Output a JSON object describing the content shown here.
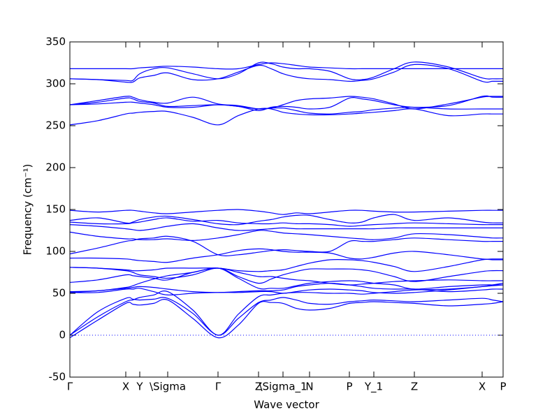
{
  "chart_data": {
    "type": "line",
    "xlabel": "Wave vector",
    "ylabel": "Frequency (cm⁻¹)",
    "x": [
      0,
      0.4,
      0.8,
      0.9,
      1.0,
      1.2,
      1.4,
      1.76,
      2.12,
      2.41,
      2.7,
      2.88,
      3.05,
      3.24,
      3.43,
      3.72,
      4.0,
      4.18,
      4.35,
      4.64,
      4.93,
      5.42,
      5.9,
      6.05,
      6.2
    ],
    "xlim": [
      0,
      6.2
    ],
    "xticks": [
      {
        "value": 0,
        "label": "Γ"
      },
      {
        "value": 0.8,
        "label": "X"
      },
      {
        "value": 1.0,
        "label": "Y"
      },
      {
        "value": 1.4,
        "label": "\\Sigma"
      },
      {
        "value": 2.12,
        "label": "Γ"
      },
      {
        "value": 2.7,
        "label": "Z"
      },
      {
        "value": 3.05,
        "label": "\\Sigma_1"
      },
      {
        "value": 3.43,
        "label": "N"
      },
      {
        "value": 4.0,
        "label": "P"
      },
      {
        "value": 4.35,
        "label": "Y_1"
      },
      {
        "value": 4.93,
        "label": "Z"
      },
      {
        "value": 5.9,
        "label": "X"
      },
      {
        "value": 6.2,
        "label": "P"
      }
    ],
    "ylim": [
      -50,
      350
    ],
    "yticks": [
      -50,
      0,
      50,
      100,
      150,
      200,
      250,
      300,
      350
    ],
    "color": "#0000ff",
    "zero_line": true,
    "series": [
      {
        "values": [
          318,
          318,
          318,
          318,
          319,
          320,
          321,
          320,
          318,
          318,
          323,
          325,
          324,
          322,
          320,
          319,
          318,
          318,
          318,
          318,
          318,
          318,
          318,
          318,
          318
        ]
      },
      {
        "values": [
          306,
          305,
          304,
          304,
          312,
          318,
          319,
          312,
          306,
          312,
          325,
          324,
          320,
          318,
          318,
          315,
          306,
          305,
          308,
          318,
          326,
          320,
          307,
          306,
          306
        ]
      },
      {
        "values": [
          306,
          305,
          302,
          302,
          307,
          310,
          313,
          305,
          306,
          314,
          322,
          318,
          312,
          308,
          306,
          305,
          303,
          304,
          306,
          314,
          323,
          318,
          303,
          303,
          303
        ]
      },
      {
        "values": [
          275,
          280,
          285,
          284,
          281,
          278,
          277,
          284,
          276,
          274,
          270,
          271,
          275,
          280,
          282,
          283,
          285,
          284,
          282,
          276,
          270,
          276,
          284,
          285,
          285
        ]
      },
      {
        "values": [
          275,
          278,
          283,
          282,
          279,
          277,
          273,
          274,
          275,
          273,
          268,
          272,
          273,
          272,
          270,
          272,
          283,
          282,
          280,
          275,
          272,
          274,
          285,
          284,
          284
        ]
      },
      {
        "values": [
          275,
          276,
          278,
          278,
          277,
          275,
          272,
          272,
          275,
          273,
          270,
          271,
          271,
          268,
          265,
          264,
          266,
          267,
          269,
          271,
          272,
          270,
          270,
          270,
          270
        ]
      },
      {
        "values": [
          251,
          256,
          264,
          265,
          266,
          267,
          267,
          260,
          251,
          262,
          270,
          270,
          266,
          264,
          263,
          263,
          264,
          265,
          266,
          268,
          270,
          262,
          264,
          264,
          264
        ]
      },
      {
        "values": [
          149,
          147,
          149,
          149,
          148,
          146,
          145,
          147,
          149,
          150,
          148,
          146,
          144,
          146,
          145,
          147,
          149,
          149,
          148,
          147,
          147,
          148,
          149,
          149,
          149
        ]
      },
      {
        "values": [
          137,
          140,
          134,
          135,
          138,
          141,
          142,
          138,
          133,
          132,
          136,
          138,
          141,
          143,
          143,
          138,
          134,
          135,
          140,
          144,
          137,
          140,
          135,
          134,
          134
        ]
      },
      {
        "values": [
          135,
          133,
          133,
          134,
          135,
          138,
          140,
          136,
          137,
          134,
          133,
          133,
          134,
          133,
          133,
          132,
          130,
          131,
          132,
          133,
          134,
          133,
          132,
          132,
          132
        ]
      },
      {
        "values": [
          132,
          130,
          127,
          126,
          125,
          127,
          130,
          133,
          128,
          125,
          126,
          127,
          128,
          127,
          127,
          127,
          127,
          127,
          127,
          128,
          128,
          128,
          128,
          128,
          128
        ]
      },
      {
        "values": [
          123,
          118,
          115,
          115,
          114,
          114,
          115,
          113,
          116,
          120,
          125,
          124,
          122,
          121,
          120,
          118,
          116,
          115,
          114,
          116,
          121,
          120,
          117,
          116,
          116
        ]
      },
      {
        "values": [
          97,
          104,
          112,
          113,
          115,
          116,
          118,
          112,
          96,
          96,
          99,
          101,
          102,
          101,
          100,
          100,
          112,
          112,
          112,
          114,
          116,
          114,
          112,
          112,
          112
        ]
      },
      {
        "values": [
          92,
          92,
          91,
          90,
          89,
          88,
          87,
          92,
          96,
          101,
          103,
          102,
          100,
          99,
          99,
          98,
          92,
          91,
          93,
          98,
          100,
          96,
          91,
          91,
          91
        ]
      },
      {
        "values": [
          81,
          80,
          78,
          77,
          77,
          78,
          80,
          80,
          80,
          77,
          76,
          77,
          78,
          82,
          86,
          90,
          90,
          89,
          87,
          82,
          76,
          82,
          90,
          90,
          90
        ]
      },
      {
        "values": [
          81,
          80,
          77,
          75,
          72,
          70,
          68,
          72,
          80,
          70,
          62,
          67,
          72,
          76,
          79,
          79,
          79,
          78,
          76,
          70,
          64,
          70,
          76,
          77,
          77
        ]
      },
      {
        "values": [
          63,
          66,
          72,
          71,
          70,
          68,
          66,
          75,
          80,
          75,
          70,
          70,
          68,
          66,
          65,
          62,
          60,
          61,
          62,
          64,
          65,
          66,
          65,
          65,
          65
        ]
      },
      {
        "values": [
          52,
          53,
          57,
          59,
          62,
          67,
          71,
          75,
          80,
          68,
          56,
          56,
          56,
          59,
          62,
          64,
          65,
          64,
          62,
          60,
          55,
          58,
          60,
          60,
          60
        ]
      },
      {
        "values": [
          51,
          53,
          56,
          57,
          58,
          57,
          55,
          52,
          51,
          52,
          53,
          53,
          54,
          58,
          60,
          62,
          60,
          58,
          56,
          55,
          55,
          52,
          54,
          55,
          55
        ]
      },
      {
        "values": [
          51,
          51,
          55,
          55,
          56,
          52,
          48,
          50,
          51,
          51,
          52,
          52,
          50,
          52,
          54,
          55,
          54,
          53,
          51,
          50,
          51,
          54,
          58,
          59,
          60
        ]
      },
      {
        "values": [
          0,
          22,
          40,
          42,
          45,
          48,
          52,
          30,
          0,
          25,
          46,
          48,
          50,
          51,
          51,
          50,
          50,
          49,
          50,
          52,
          54,
          55,
          58,
          60,
          62
        ]
      },
      {
        "values": [
          0,
          28,
          44,
          43,
          42,
          43,
          44,
          26,
          0,
          20,
          39,
          42,
          45,
          42,
          38,
          37,
          40,
          41,
          42,
          41,
          40,
          42,
          44,
          42,
          40
        ]
      },
      {
        "values": [
          -3,
          18,
          38,
          37,
          36,
          38,
          42,
          20,
          -3,
          12,
          38,
          39,
          38,
          32,
          30,
          32,
          38,
          39,
          40,
          39,
          38,
          35,
          37,
          38,
          40
        ]
      }
    ]
  }
}
